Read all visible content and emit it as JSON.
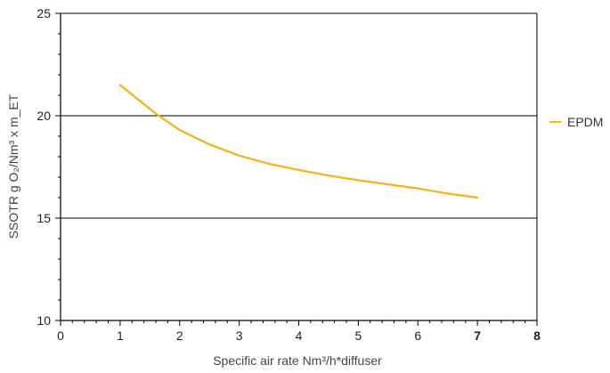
{
  "chart_data": {
    "type": "line",
    "xlabel": "Specific air rate Nm³/h*diffuser",
    "ylabel": "SSOTR g O₂/Nm³ x m_ET",
    "xlim": [
      0,
      8
    ],
    "ylim": [
      10,
      25
    ],
    "x_ticks": [
      "0",
      "1",
      "2",
      "3",
      "4",
      "5",
      "6",
      "7",
      "8"
    ],
    "x_ticks_bold": [
      "7",
      "8"
    ],
    "y_ticks": [
      "10",
      "15",
      "20",
      "25"
    ],
    "grid": "horizontal",
    "legend": "right",
    "colors": {
      "line": "#F5B218",
      "axis": "#000000",
      "grid": "#000000"
    },
    "series": [
      {
        "name": "EPDM",
        "x": [
          1,
          1.3,
          1.6,
          2,
          2.5,
          3,
          3.5,
          4,
          4.5,
          5,
          5.5,
          6,
          6.5,
          7
        ],
        "y": [
          21.5,
          20.8,
          20.1,
          19.3,
          18.6,
          18.05,
          17.65,
          17.35,
          17.08,
          16.85,
          16.65,
          16.45,
          16.2,
          16.0
        ]
      }
    ]
  }
}
